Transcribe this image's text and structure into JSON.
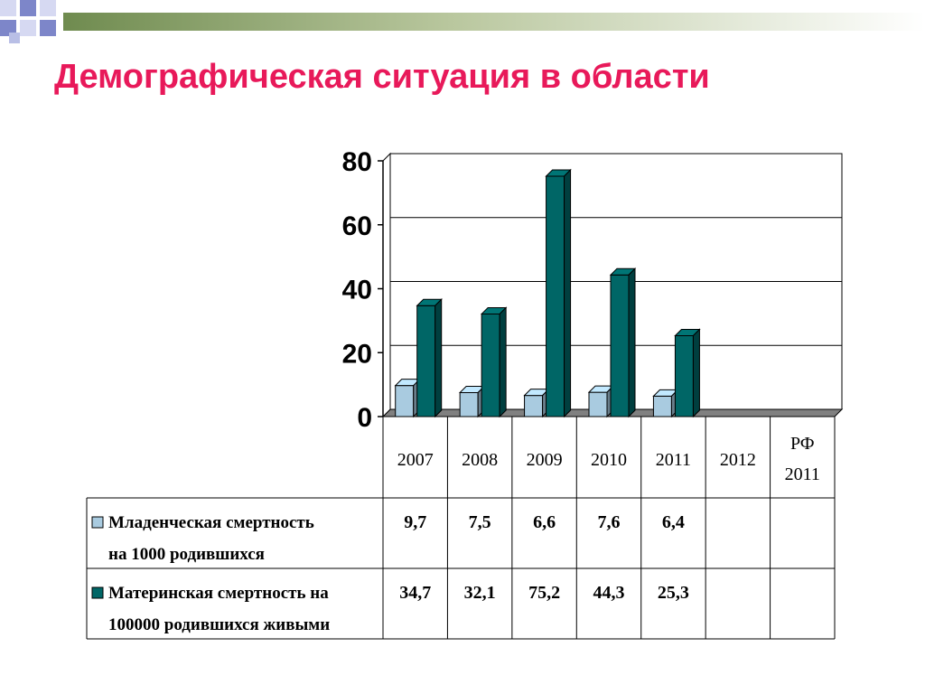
{
  "slide": {
    "title": "Демографическая ситуация в области"
  },
  "colors": {
    "title": "#e8195a",
    "infant_series": "#a9cbe0",
    "maternal_series": "#006666"
  },
  "chart_data": {
    "type": "bar",
    "categories": [
      "2007",
      "2008",
      "2009",
      "2010",
      "2011",
      "2012",
      "РФ 2011"
    ],
    "series": [
      {
        "name": "Младенческая смертность на 1000 родившихся",
        "values": [
          9.7,
          7.5,
          6.6,
          7.6,
          6.4,
          null,
          null
        ],
        "labels": [
          "9,7",
          "7,5",
          "6,6",
          "7,6",
          "6,4",
          "",
          ""
        ]
      },
      {
        "name": "Материнская смертность на 100000 родившихся живыми",
        "values": [
          34.7,
          32.1,
          75.2,
          44.3,
          25.3,
          null,
          null
        ],
        "labels": [
          "34,7",
          "32,1",
          "75,2",
          "44,3",
          "25,3",
          "",
          ""
        ]
      }
    ],
    "ylim": [
      0,
      80
    ],
    "yticks": [
      0,
      20,
      40,
      60,
      80
    ],
    "grid": true,
    "data_table": true
  }
}
